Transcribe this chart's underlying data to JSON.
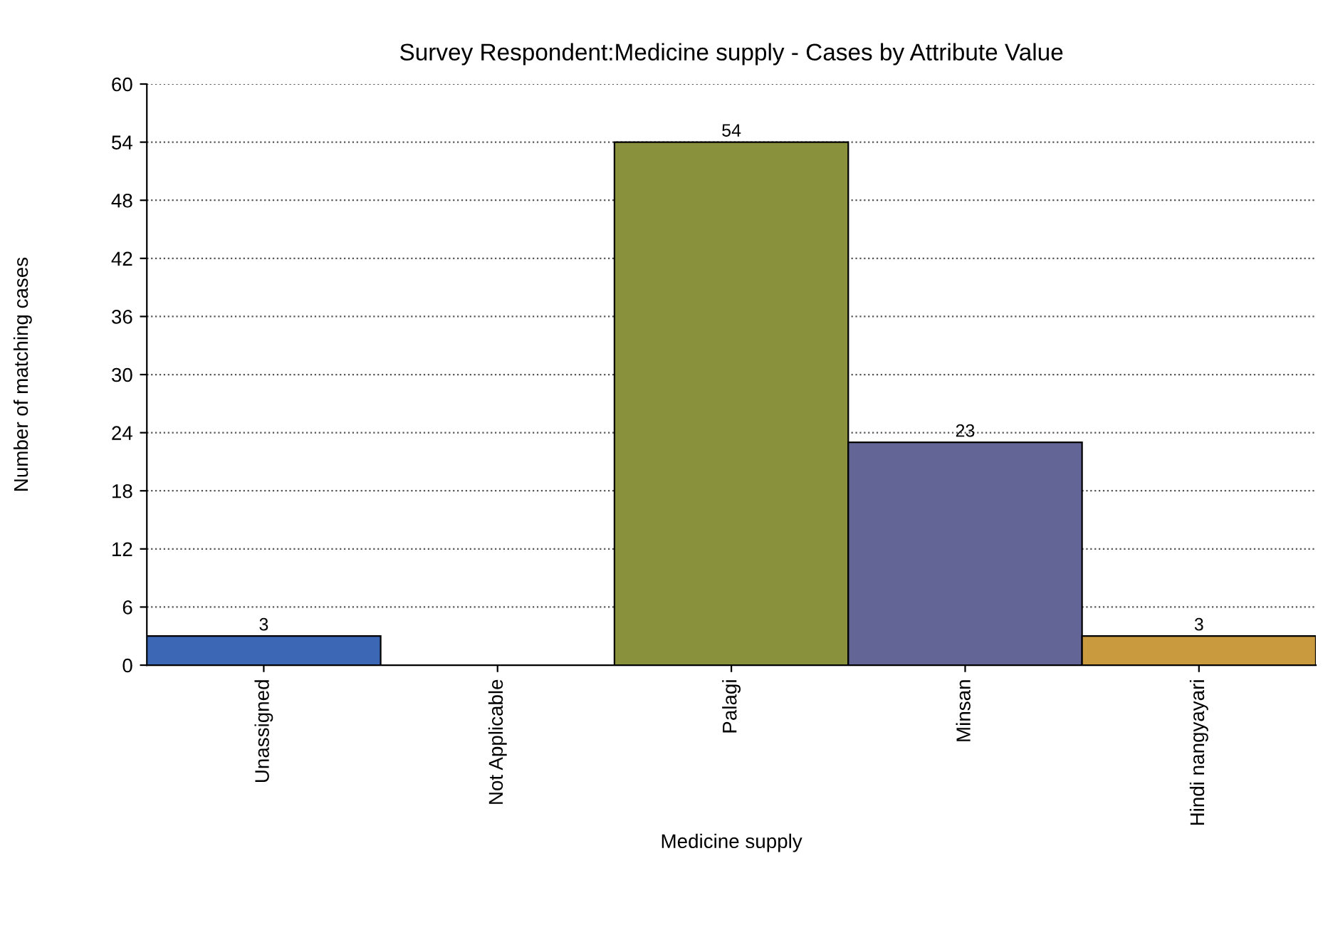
{
  "chart_data": {
    "type": "bar",
    "title": "Survey Respondent:Medicine supply - Cases by Attribute Value",
    "xlabel": "Medicine supply",
    "ylabel": "Number of matching cases",
    "categories": [
      "Unassigned",
      "Not Applicable",
      "Palagi",
      "Minsan",
      "Hindi nangyayari"
    ],
    "values": [
      3,
      0,
      54,
      23,
      3
    ],
    "colors": [
      "#3b67b5",
      "#8c8c8c",
      "#8a913c",
      "#626596",
      "#c99a3e"
    ],
    "value_labels": [
      "3",
      null,
      "54",
      "23",
      "3"
    ],
    "ylim": [
      0,
      60
    ],
    "yticks": [
      0,
      6,
      12,
      18,
      24,
      30,
      36,
      42,
      48,
      54,
      60
    ],
    "grid": "y"
  }
}
